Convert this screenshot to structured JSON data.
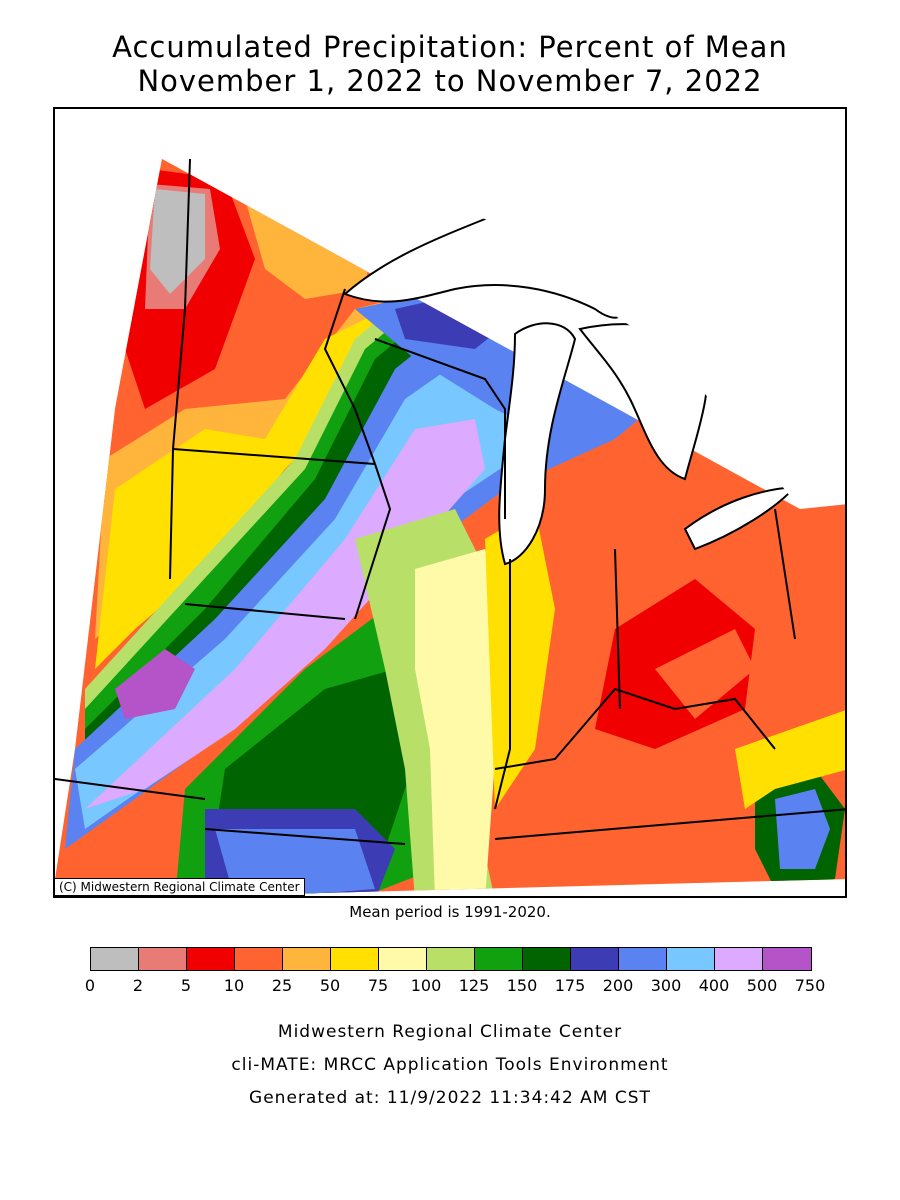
{
  "title_line1": "Accumulated Precipitation: Percent of Mean",
  "title_line2": "November 1, 2022 to November 7, 2022",
  "map": {
    "credit": "(C) Midwestern Regional Climate Center",
    "mean_period_note": "Mean period is 1991-2020."
  },
  "legend": {
    "breaks": [
      "0",
      "2",
      "5",
      "10",
      "25",
      "50",
      "75",
      "100",
      "125",
      "150",
      "175",
      "200",
      "300",
      "400",
      "500",
      "750"
    ],
    "colors": [
      "#bebebe",
      "#e87b76",
      "#f00000",
      "#ff6330",
      "#ffb43c",
      "#ffe000",
      "#fffaa8",
      "#b8e068",
      "#10a010",
      "#006400",
      "#3c3cb4",
      "#5a82f0",
      "#78c8ff",
      "#dcaaff",
      "#b454c8"
    ]
  },
  "footer": {
    "line1": "Midwestern Regional Climate Center",
    "line2": "cli-MATE: MRCC Application Tools Environment",
    "line3": "Generated at: 11/9/2022 11:34:42 AM CST"
  }
}
